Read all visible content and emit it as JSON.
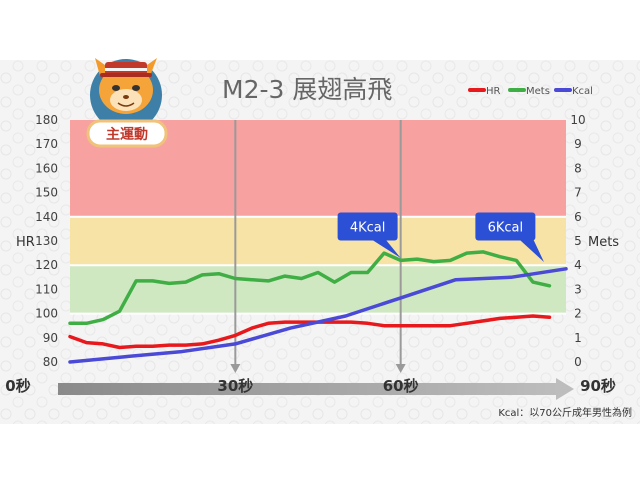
{
  "title": "M2-3  展翅高飛",
  "badge": "主運動",
  "note": "Kcal：以70公斤成年男性為例",
  "timeline": {
    "labels": [
      {
        "text": "0秒",
        "t": 0
      },
      {
        "text": "30秒",
        "t": 30
      },
      {
        "text": "60秒",
        "t": 60
      },
      {
        "text": "90秒",
        "t": 90
      }
    ]
  },
  "colors": {
    "hr": "#e8191c",
    "mets": "#3fae45",
    "kcal": "#4a4ad6",
    "zone_high": "#f7a1a1",
    "zone_mid": "#f7e3a6",
    "zone_low": "#cfe8c2",
    "callout": "#2b50d6"
  },
  "chart_data": {
    "type": "line",
    "xlim": [
      0,
      90
    ],
    "left_axis": {
      "label": "HR",
      "lim": [
        80,
        180
      ],
      "ticks": [
        80,
        90,
        100,
        110,
        120,
        130,
        140,
        150,
        160,
        170,
        180
      ]
    },
    "right_axis": {
      "label": "Mets",
      "lim": [
        0,
        10
      ],
      "ticks": [
        0,
        1,
        2,
        3,
        4,
        5,
        6,
        7,
        8,
        9,
        10
      ]
    },
    "zones": [
      {
        "name": "high",
        "from": 140,
        "to": 180
      },
      {
        "name": "mid",
        "from": 120,
        "to": 140
      },
      {
        "name": "low",
        "from": 100,
        "to": 120
      }
    ],
    "markers": [
      30,
      60
    ],
    "legend": [
      "HR",
      "Mets",
      "Kcal"
    ],
    "series": [
      {
        "name": "HR",
        "axis": "left",
        "x": [
          0,
          3,
          6,
          9,
          12,
          15,
          18,
          21,
          24,
          27,
          30,
          33,
          36,
          39,
          42,
          45,
          48,
          51,
          54,
          57,
          60,
          63,
          66,
          69,
          72,
          75,
          78,
          81,
          84,
          87
        ],
        "values": [
          90.5,
          88,
          87.5,
          86,
          86.5,
          86.5,
          87,
          87,
          87.5,
          89,
          91,
          94,
          96,
          96.5,
          96.5,
          96.5,
          96.5,
          96.5,
          96,
          95,
          95,
          95,
          95,
          95,
          96,
          97,
          98,
          98.5,
          99,
          98.5
        ]
      },
      {
        "name": "Mets",
        "axis": "right",
        "x": [
          0,
          3,
          6,
          9,
          12,
          15,
          18,
          21,
          24,
          27,
          30,
          33,
          36,
          39,
          42,
          45,
          48,
          51,
          54,
          57,
          60,
          63,
          66,
          69,
          72,
          75,
          78,
          81,
          84,
          87
        ],
        "values": [
          1.6,
          1.6,
          1.75,
          2.1,
          3.35,
          3.35,
          3.25,
          3.3,
          3.6,
          3.65,
          3.45,
          3.4,
          3.35,
          3.55,
          3.45,
          3.7,
          3.3,
          3.7,
          3.7,
          4.5,
          4.2,
          4.25,
          4.15,
          4.2,
          4.5,
          4.55,
          4.35,
          4.2,
          3.3,
          3.15
        ]
      },
      {
        "name": "Kcal",
        "axis": "right",
        "x": [
          0,
          10,
          20,
          30,
          40,
          50,
          60,
          70,
          80,
          90
        ],
        "values": [
          0,
          0.22,
          0.42,
          0.75,
          1.4,
          1.9,
          2.65,
          3.4,
          3.5,
          3.85
        ]
      }
    ],
    "callouts": [
      {
        "text": "4Kcal",
        "x": 54,
        "y": 5.6
      },
      {
        "text": "6Kcal",
        "x": 79,
        "y": 5.6
      }
    ]
  }
}
